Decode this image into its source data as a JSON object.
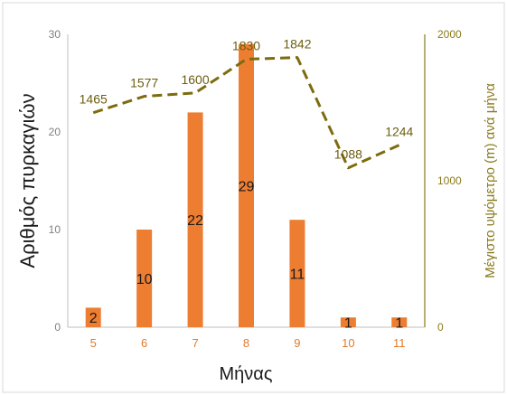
{
  "chart_data": {
    "type": "bar",
    "categories": [
      "5",
      "6",
      "7",
      "8",
      "9",
      "10",
      "11"
    ],
    "series": [
      {
        "type": "bar",
        "axis": "left",
        "values": [
          2,
          10,
          22,
          29,
          11,
          1,
          1
        ],
        "color": "#ed7d31"
      },
      {
        "type": "line",
        "axis": "right",
        "values": [
          1465,
          1577,
          1600,
          1830,
          1842,
          1088,
          1244
        ],
        "color": "#7d6b0e",
        "style": "dashed"
      }
    ],
    "xlabel": "Μήνας",
    "ylabel": "Αριθμός πυρκαγιών",
    "y2label": "Μέγιστο υψόμετρο (m) ανά μήνα",
    "ylim": [
      0,
      30
    ],
    "y2lim": [
      0,
      2000
    ],
    "yticks": [
      "0",
      "10",
      "20",
      "30"
    ],
    "y2ticks": [
      "0",
      "1000",
      "2000"
    ],
    "grid": false,
    "colors": {
      "bar": "#ed7d31",
      "line": "#7d6b0e",
      "x_tick": "#e07b2c",
      "y2_text": "#8a7a1a"
    }
  }
}
